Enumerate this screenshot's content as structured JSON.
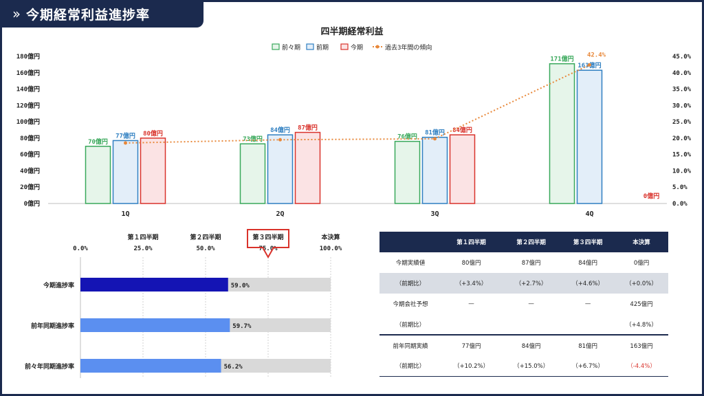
{
  "header": {
    "title": "今期経常利益進捗率",
    "icon": "double-chevron-icon"
  },
  "colors": {
    "navy": "#1b2a4e",
    "prev2": "#38a85a",
    "prev": "#2f7fc1",
    "current": "#d9322b",
    "trend": "#e8883a",
    "progress_current": "#1414b4",
    "progress_past": "#5b8ff0",
    "track": "#d9d9d9"
  },
  "chart_data": [
    {
      "type": "bar",
      "title": "四半期経常利益",
      "categories": [
        "1Q",
        "2Q",
        "3Q",
        "4Q"
      ],
      "series": [
        {
          "name": "前々期",
          "values": [
            70,
            73,
            76,
            171
          ],
          "labels": [
            "70億円",
            "73億円",
            "76億円",
            "171億円"
          ]
        },
        {
          "name": "前期",
          "values": [
            77,
            84,
            81,
            163
          ],
          "labels": [
            "77億円",
            "84億円",
            "81億円",
            "163億円"
          ]
        },
        {
          "name": "今期",
          "values": [
            80,
            87,
            84,
            0
          ],
          "labels": [
            "80億円",
            "87億円",
            "84億円",
            "0億円"
          ]
        }
      ],
      "line_series": {
        "name": "過去3年間の傾向",
        "values": [
          18.5,
          19.5,
          19.8,
          42.4
        ],
        "labels": [
          "",
          "",
          "",
          "42.4%"
        ]
      },
      "ylim": [
        0,
        180
      ],
      "yticks": [
        "0億円",
        "20億円",
        "40億円",
        "60億円",
        "80億円",
        "100億円",
        "120億円",
        "140億円",
        "160億円",
        "180億円"
      ],
      "y2lim": [
        0,
        45
      ],
      "y2ticks": [
        "0.0%",
        "5.0%",
        "10.0%",
        "15.0%",
        "20.0%",
        "25.0%",
        "30.0%",
        "35.0%",
        "40.0%",
        "45.0%"
      ],
      "legend": "top"
    },
    {
      "type": "bar",
      "orientation": "horizontal",
      "categories": [
        "今期進捗率",
        "前年同期進捗率",
        "前々年同期進捗率"
      ],
      "values": [
        59.0,
        59.7,
        56.2
      ],
      "labels": [
        "59.0%",
        "59.7%",
        "56.2%"
      ],
      "xlim": [
        0,
        100
      ],
      "xticks": [
        "0.0%",
        "25.0%",
        "50.0%",
        "75.0%",
        "100.0%"
      ],
      "xtick_headers": [
        "",
        "第１四半期",
        "第２四半期",
        "第３四半期",
        "本決算"
      ],
      "highlight_tick": 3
    }
  ],
  "table": {
    "headers": [
      "",
      "第１四半期",
      "第２四半期",
      "第３四半期",
      "本決算"
    ],
    "rows": [
      [
        "今期実績値",
        "80億円",
        "87億円",
        "84億円",
        "0億円"
      ],
      [
        "（前期比）",
        "（+3.4%）",
        "（+2.7%）",
        "（+4.6%）",
        "（+0.0%）"
      ],
      [
        "今期会社予想",
        "—",
        "—",
        "—",
        "425億円"
      ],
      [
        "（前期比）",
        "",
        "",
        "",
        "（+4.8%）"
      ],
      [
        "前年同期実績",
        "77億円",
        "84億円",
        "81億円",
        "163億円"
      ],
      [
        "（前期比）",
        "（+10.2%）",
        "（+15.0%）",
        "（+6.7%）",
        "（-4.4%）"
      ]
    ]
  }
}
